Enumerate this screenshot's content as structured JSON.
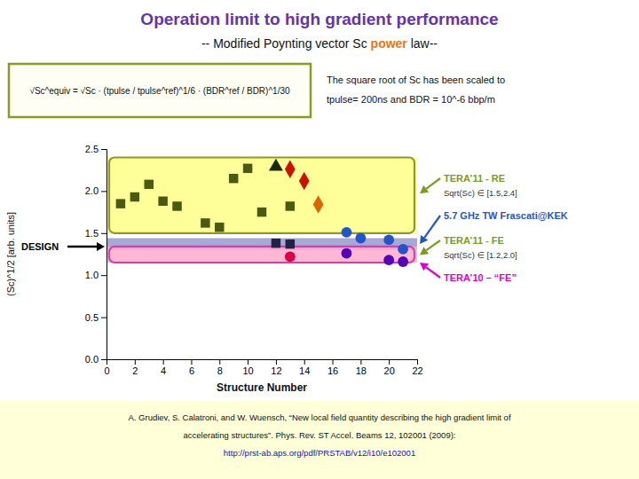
{
  "chart_data": {
    "type": "scatter",
    "title": "Operation limit to high gradient performance",
    "title_color": "#6633aa",
    "subtitle": [
      {
        "text": "-- Modified Poynting vector Sc ",
        "color": "#111111"
      },
      {
        "text": "power",
        "color": "#e07820"
      },
      {
        "text": " law--",
        "color": "#111111"
      }
    ],
    "x_label": "Structure Number",
    "y_label": "(Sc)^1/2 [arb. units]",
    "xlim": [
      0,
      22
    ],
    "ylim": [
      0,
      2.5
    ],
    "xticks": [
      0,
      2,
      4,
      6,
      8,
      10,
      12,
      14,
      16,
      18,
      20,
      22
    ],
    "yticks": [
      {
        "value": 0,
        "label": "0.0"
      },
      0.5,
      {
        "value": 1.0,
        "label": "1.0"
      },
      1.5,
      {
        "value": 2.0,
        "label": "2.0"
      },
      2.5
    ],
    "bands": [
      {
        "y": [
          1.5,
          2.4
        ],
        "color": "#ffff88",
        "border_color": "#8a9c20"
      },
      {
        "y": [
          1.3,
          1.44
        ],
        "color": "#9999cc"
      },
      {
        "y": [
          1.15,
          1.34
        ],
        "color": "#ffaacc",
        "border_color": "#cc44aa"
      }
    ],
    "series": [
      {
        "x": [
          1,
          2,
          3,
          4,
          5,
          7,
          8,
          9,
          10,
          11,
          13
        ],
        "values": [
          1.85,
          1.93,
          2.08,
          1.88,
          1.82,
          1.62,
          1.57,
          2.15,
          2.27,
          1.75,
          1.82
        ],
        "color": "#4a5a10",
        "marker": "square"
      },
      {
        "x": [
          12
        ],
        "values": [
          2.29
        ],
        "color": "#1a2a04",
        "marker": "triangle"
      },
      {
        "x": [
          13,
          14
        ],
        "values": [
          2.26,
          2.12
        ],
        "color": "#cc1100",
        "marker": "diamond"
      },
      {
        "x": [
          15
        ],
        "values": [
          1.84
        ],
        "color": "#dd6600",
        "marker": "diamond"
      },
      {
        "x": [
          17,
          18,
          20,
          21
        ],
        "values": [
          1.51,
          1.44,
          1.42,
          1.31
        ],
        "color": "#2255cc",
        "marker": "circle"
      },
      {
        "x": [
          12,
          13
        ],
        "values": [
          1.38,
          1.37
        ],
        "color": "#222244",
        "marker": "square"
      },
      {
        "x": [
          13
        ],
        "values": [
          1.22
        ],
        "color": "#dd0044",
        "marker": "circle"
      },
      {
        "x": [
          17,
          20,
          21
        ],
        "values": [
          1.26,
          1.18,
          1.16
        ],
        "color": "#5500bb",
        "marker": "circle"
      }
    ],
    "design": {
      "text": "DESIGN",
      "y": 1.34
    },
    "annotations": [
      {
        "text": "TERA’11 - RE",
        "note": "Sqrt(Sc) ∈ [1.5,2.4]",
        "color": "#7a9c20",
        "y": 1.97
      },
      {
        "text": "5.7 GHz TW Frascati@KEK",
        "color": "#2255cc",
        "y": 1.37
      },
      {
        "text": "TERA’11 - FE",
        "note": "Sqrt(Sc) ∈ [1.2,2.0]",
        "color": "#7a9c20",
        "y": 1.24
      },
      {
        "text": "TERA’10 – “FE”",
        "color": "#dd00dd",
        "y": 1.15
      }
    ],
    "formula": {
      "text": "√Sc^equiv = √Sc · (tpulse / tpulse^ref)^1/6 · (BDR^ref / BDR)^1/30",
      "color": "#8a9c20"
    },
    "scaling_note": [
      "The square root of Sc has been scaled to",
      "tpulse= 200ns and BDR = 10^-6 bbp/m"
    ],
    "references": [
      {
        "text": "A. Grudiev, S. Calatroni, and W. Wuensch, “New local field quantity describing the high gradient limit of",
        "color": "#111111"
      },
      {
        "text": "accelerating structures”. Phys. Rev. ST Accel. Beams 12, 102001 (2009):",
        "color": "#111111"
      },
      {
        "text": "http://prst-ab.aps.org/pdf/PRSTAB/v12/i10/e102001",
        "color": "#1111cc"
      }
    ]
  }
}
